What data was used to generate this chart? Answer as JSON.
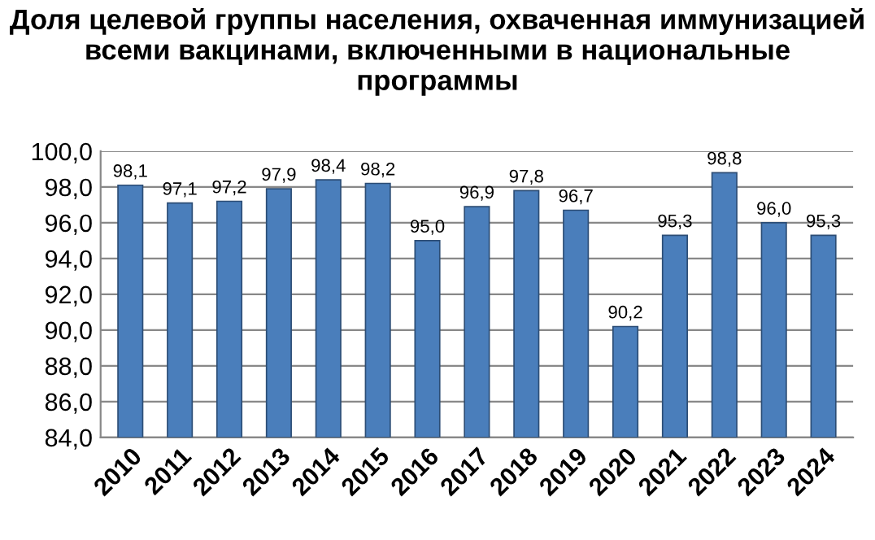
{
  "chart_data": {
    "type": "bar",
    "title": "Доля целевой группы населения, охваченная иммунизацией всеми вакцинами, включенными в национальные программы",
    "categories": [
      "2010",
      "2011",
      "2012",
      "2013",
      "2014",
      "2015",
      "2016",
      "2017",
      "2018",
      "2019",
      "2020",
      "2021",
      "2022",
      "2023",
      "2024"
    ],
    "values": [
      98.1,
      97.1,
      97.2,
      97.9,
      98.4,
      98.2,
      95.0,
      96.9,
      97.8,
      96.7,
      90.2,
      95.3,
      98.8,
      96.0,
      95.3
    ],
    "value_labels": [
      "98,1",
      "97,1",
      "97,2",
      "97,9",
      "98,4",
      "98,2",
      "95,0",
      "96,9",
      "97,8",
      "96,7",
      "90,2",
      "95,3",
      "98,8",
      "96,0",
      "95,3"
    ],
    "color": "#4a7ebb",
    "ylim": [
      84,
      100
    ],
    "yticks": [
      {
        "value": 84,
        "label": "84,0"
      },
      {
        "value": 86,
        "label": "86,0"
      },
      {
        "value": 88,
        "label": "88,0"
      },
      {
        "value": 90,
        "label": "90,0"
      },
      {
        "value": 92,
        "label": "92,0"
      },
      {
        "value": 94,
        "label": "94,0"
      },
      {
        "value": 96,
        "label": "96,0"
      },
      {
        "value": 98,
        "label": "98,0"
      },
      {
        "value": 100,
        "label": "100,0"
      }
    ],
    "grid": "y",
    "legend": false
  }
}
